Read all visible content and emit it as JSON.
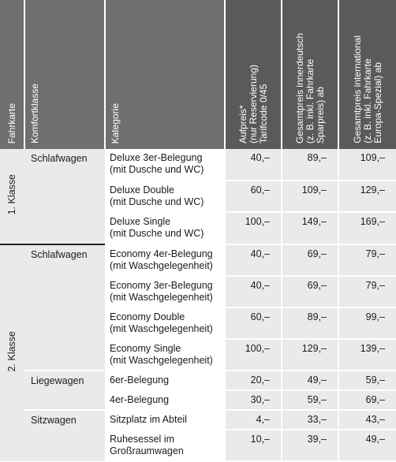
{
  "headers": {
    "fahrkarte": "Fahrkarte",
    "komfortklasse": "Komfortklasse",
    "kategorie": "Kategorie",
    "aufpreis": "Aufpreis*\n(nur Reservierung)\nTarifcode 0/45",
    "innerdeutsch": "Gesamtpreis innerdeutsch\n(z. B. inkl. Fahrkarte\nSparpreis) ab",
    "international": "Gesamtpreis international\n(z. B. inkl. Fahrkarte\nEuropa-Spezial) ab"
  },
  "rows": [
    {
      "klasse": "1. Klasse",
      "komfort": "Schlafwagen",
      "kategorie": "Deluxe 3er-Belegung\n(mit Dusche und WC)",
      "aufpreis": "40,–",
      "innerdeutsch": "89,–",
      "international": "109,–"
    },
    {
      "kategorie": "Deluxe Double\n(mit Dusche und WC)",
      "aufpreis": "60,–",
      "innerdeutsch": "109,–",
      "international": "129,–"
    },
    {
      "kategorie": "Deluxe Single\n(mit Dusche und WC)",
      "aufpreis": "100,–",
      "innerdeutsch": "149,–",
      "international": "169,–"
    },
    {
      "klasse": "2. Klasse",
      "komfort": "Schlafwagen",
      "kategorie": "Economy 4er-Belegung\n(mit Waschgelegenheit)",
      "aufpreis": "40,–",
      "innerdeutsch": "69,–",
      "international": "79,–"
    },
    {
      "kategorie": "Economy 3er-Belegung\n(mit Waschgelegenheit)",
      "aufpreis": "40,–",
      "innerdeutsch": "69,–",
      "international": "79,–"
    },
    {
      "kategorie": "Economy Double\n(mit Waschgelegenheit)",
      "aufpreis": "60,–",
      "innerdeutsch": "89,–",
      "international": "99,–"
    },
    {
      "kategorie": "Economy Single\n(mit Waschgelegenheit)",
      "aufpreis": "100,–",
      "innerdeutsch": "129,–",
      "international": "139,–"
    },
    {
      "komfort": "Liegewagen",
      "kategorie": "6er-Belegung",
      "aufpreis": "20,–",
      "innerdeutsch": "49,–",
      "international": "59,–"
    },
    {
      "kategorie": "4er-Belegung",
      "aufpreis": "30,–",
      "innerdeutsch": "59,–",
      "international": "69,–"
    },
    {
      "komfort": "Sitzwagen",
      "kategorie": "Sitzplatz im Abteil",
      "aufpreis": "4,–",
      "innerdeutsch": "33,–",
      "international": "43,–"
    },
    {
      "kategorie": "Ruhesessel im\nGroßraumwagen",
      "aufpreis": "10,–",
      "innerdeutsch": "39,–",
      "international": "49,–"
    }
  ]
}
